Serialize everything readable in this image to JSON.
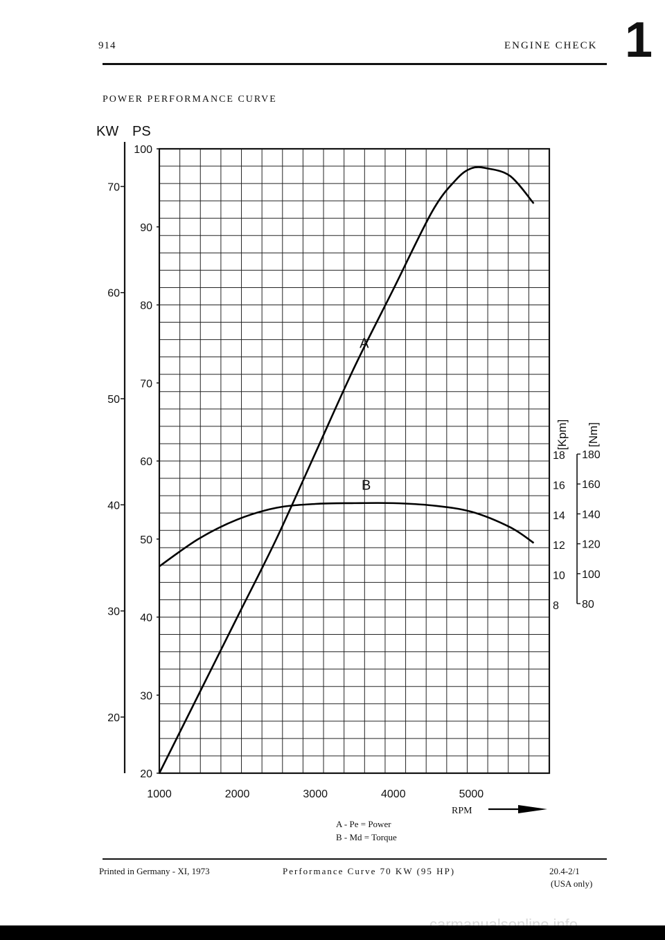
{
  "header": {
    "model": "914",
    "section_title": "ENGINE CHECK",
    "section_number": "1"
  },
  "chart_title": "POWER PERFORMANCE CURVE",
  "chart_data": {
    "type": "line",
    "title": "POWER PERFORMANCE CURVE",
    "xlabel": "RPM",
    "xlim": [
      1000,
      6000
    ],
    "x_ticks": [
      "1000",
      "2000",
      "3000",
      "4000",
      "5000"
    ],
    "left_axis_ps": {
      "label": "PS",
      "range": [
        20,
        100
      ],
      "ticks": [
        "100",
        "90",
        "80",
        "70",
        "60",
        "50",
        "40",
        "30",
        "20"
      ]
    },
    "left_axis_kw": {
      "label": "KW",
      "ticks": [
        "70",
        "60",
        "50",
        "40",
        "30",
        "20"
      ]
    },
    "right_axis_kpm": {
      "label": "[Kpm]",
      "ticks": [
        "18",
        "16",
        "14",
        "12",
        "10",
        "8"
      ]
    },
    "right_axis_nm": {
      "label": "[Nm]",
      "ticks": [
        "180",
        "160",
        "140",
        "120",
        "100",
        "80"
      ]
    },
    "grid": true,
    "series": [
      {
        "name": "A",
        "axis": "PS",
        "x": [
          1000,
          1500,
          2000,
          2500,
          3000,
          3500,
          4000,
          4500,
          4800,
          5000,
          5200,
          5500,
          5800
        ],
        "y": [
          20,
          30,
          40,
          50,
          61,
          72,
          82,
          92,
          96,
          97.5,
          97.5,
          96.5,
          93
        ]
      },
      {
        "name": "B",
        "axis": "PS",
        "x": [
          1000,
          1500,
          2000,
          2500,
          3000,
          3500,
          4000,
          4500,
          5000,
          5500,
          5800
        ],
        "y": [
          46.5,
          50,
          52.5,
          54,
          54.5,
          54.6,
          54.6,
          54.3,
          53.5,
          51.5,
          49.5
        ]
      }
    ]
  },
  "rpm_label": "RPM",
  "legend": {
    "a": "A - Pe = Power",
    "b": "B - Md = Torque"
  },
  "footer": {
    "printed": "Printed in Germany - XI, 1973",
    "caption": "Performance Curve 70 KW (95 HP)",
    "ref": "20.4-2/1",
    "region": "(USA only)"
  },
  "watermark": "carmanualsonline.info"
}
